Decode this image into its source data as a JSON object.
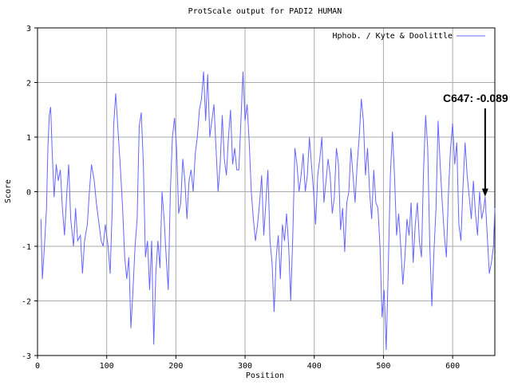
{
  "chart_data": {
    "type": "line",
    "title": "ProtScale output for PADI2 HUMAN",
    "x_label": "Position",
    "y_label": "Score",
    "xlim": [
      0,
      661
    ],
    "ylim": [
      -3,
      3
    ],
    "xticks": [
      0,
      100,
      200,
      300,
      400,
      500,
      600
    ],
    "yticks": [
      -3,
      -2,
      -1,
      0,
      1,
      2,
      3
    ],
    "grid": true,
    "legend": "upper right",
    "x": [
      5,
      7,
      10,
      13,
      15,
      17,
      19,
      21,
      24,
      27,
      30,
      33,
      36,
      39,
      42,
      45,
      48,
      52,
      55,
      58,
      62,
      65,
      68,
      72,
      75,
      78,
      82,
      85,
      88,
      92,
      95,
      98,
      102,
      105,
      108,
      110,
      113,
      116,
      120,
      123,
      126,
      129,
      132,
      135,
      138,
      141,
      144,
      147,
      150,
      153,
      156,
      159,
      162,
      165,
      168,
      171,
      174,
      177,
      180,
      183,
      186,
      189,
      192,
      195,
      198,
      201,
      204,
      207,
      210,
      213,
      216,
      219,
      222,
      225,
      228,
      231,
      234,
      237,
      240,
      243,
      246,
      249,
      252,
      255,
      258,
      261,
      264,
      267,
      270,
      273,
      276,
      279,
      282,
      285,
      288,
      291,
      294,
      297,
      300,
      303,
      306,
      309,
      312,
      315,
      318,
      321,
      324,
      327,
      330,
      333,
      336,
      339,
      342,
      345,
      348,
      351,
      354,
      357,
      360,
      363,
      366,
      369,
      372,
      375,
      378,
      381,
      384,
      387,
      390,
      393,
      396,
      399,
      402,
      405,
      408,
      411,
      414,
      417,
      420,
      423,
      426,
      429,
      432,
      435,
      438,
      441,
      444,
      447,
      450,
      453,
      456,
      459,
      462,
      465,
      468,
      471,
      474,
      477,
      480,
      483,
      486,
      489,
      492,
      495,
      498,
      501,
      504,
      507,
      510,
      513,
      516,
      519,
      522,
      525,
      528,
      531,
      534,
      537,
      540,
      543,
      546,
      549,
      552,
      555,
      558,
      561,
      564,
      567,
      570,
      573,
      576,
      579,
      582,
      585,
      588,
      591,
      594,
      597,
      600,
      603,
      606,
      609,
      612,
      615,
      618,
      621,
      624,
      627,
      630,
      633,
      636,
      639,
      642,
      645,
      647,
      650,
      653,
      656,
      659,
      661
    ],
    "series": [
      {
        "name": "Hphob. / Kyte & Doolittle",
        "color": "#6666ff",
        "values": [
          -0.5,
          -1.6,
          -1.0,
          -0.3,
          0.8,
          1.4,
          1.55,
          0.8,
          -0.1,
          0.5,
          0.2,
          0.4,
          -0.3,
          -0.8,
          -0.1,
          0.5,
          -0.5,
          -1.0,
          -0.3,
          -0.9,
          -0.8,
          -1.5,
          -0.9,
          -0.6,
          0.0,
          0.5,
          0.2,
          -0.2,
          -0.5,
          -0.9,
          -1.0,
          -0.6,
          -1.0,
          -1.5,
          -0.3,
          1.2,
          1.8,
          1.2,
          0.4,
          -0.3,
          -1.2,
          -1.6,
          -1.2,
          -2.5,
          -1.8,
          -1.0,
          -0.5,
          1.2,
          1.45,
          0.5,
          -1.2,
          -0.9,
          -1.8,
          -0.9,
          -2.8,
          -1.5,
          -0.9,
          -1.4,
          0.0,
          -0.5,
          -1.2,
          -1.8,
          0.0,
          1.0,
          1.35,
          0.8,
          -0.4,
          -0.2,
          0.6,
          0.2,
          -0.5,
          0.2,
          0.4,
          0.0,
          0.7,
          1.0,
          1.5,
          1.7,
          2.2,
          1.3,
          2.15,
          1.0,
          1.3,
          1.6,
          0.8,
          0.0,
          0.5,
          1.4,
          0.6,
          0.3,
          1.0,
          1.5,
          0.5,
          0.8,
          0.4,
          0.4,
          1.3,
          2.2,
          1.3,
          1.6,
          0.9,
          0.0,
          -0.5,
          -0.9,
          -0.6,
          -0.2,
          0.3,
          -0.8,
          -0.2,
          0.4,
          -0.9,
          -1.3,
          -2.2,
          -1.2,
          -0.8,
          -1.6,
          -0.6,
          -0.9,
          -0.4,
          -1.0,
          -2.0,
          -0.8,
          0.8,
          0.5,
          0.0,
          0.3,
          0.7,
          0.0,
          0.3,
          1.0,
          0.5,
          0.0,
          -0.6,
          0.3,
          0.6,
          1.0,
          -0.2,
          0.2,
          0.6,
          0.3,
          -0.4,
          -0.1,
          0.8,
          0.5,
          -0.7,
          -0.3,
          -1.1,
          -0.2,
          0.0,
          0.8,
          0.3,
          -0.2,
          0.5,
          1.0,
          1.7,
          1.3,
          0.3,
          0.8,
          0.0,
          -0.5,
          0.4,
          -0.2,
          -0.3,
          -1.0,
          -2.3,
          -1.8,
          -2.9,
          -1.4,
          0.3,
          1.1,
          0.3,
          -0.8,
          -0.4,
          -1.0,
          -1.7,
          -1.2,
          -0.5,
          -0.8,
          -0.2,
          -1.3,
          -0.6,
          -0.2,
          -0.9,
          -1.2,
          0.4,
          1.4,
          0.8,
          -1.0,
          -2.1,
          -1.1,
          -0.3,
          1.3,
          0.5,
          -0.2,
          -0.8,
          -1.2,
          0.0,
          0.8,
          1.25,
          0.5,
          0.9,
          -0.6,
          -0.9,
          0.1,
          0.9,
          0.3,
          -0.1,
          -0.5,
          0.2,
          -0.4,
          -0.8,
          0.0,
          -0.5,
          -0.3,
          -0.089,
          -0.8,
          -1.5,
          -1.3,
          -1.0,
          -0.3
        ]
      }
    ],
    "annotation": {
      "text": "C647: -0.089",
      "x": 647,
      "y": -0.089
    }
  }
}
